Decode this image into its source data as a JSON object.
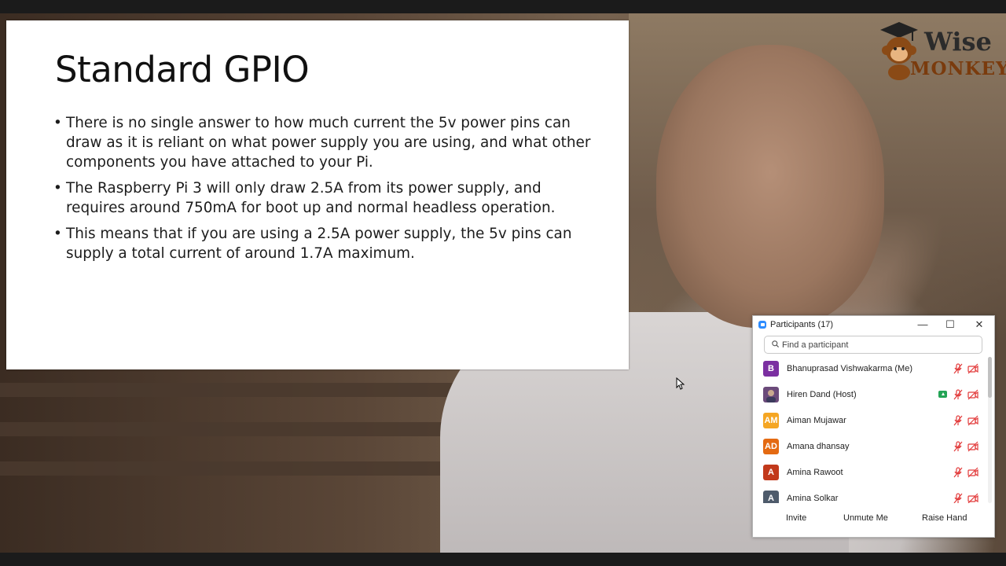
{
  "slide": {
    "title": "Standard GPIO",
    "bullets": [
      "There is no single answer to how much current the 5v power pins can draw as it is reliant on what power supply you are using, and what other components you have attached to your Pi.",
      "The Raspberry Pi 3 will only draw 2.5A from its power supply, and requires around 750mA for boot up and normal headless operation.",
      "This means that if you are using a 2.5A power supply, the 5v pins can supply a total current of around 1.7A maximum."
    ]
  },
  "logo": {
    "line1": "Wise",
    "line2": "MONKEYS",
    "icon": "monkey-graduate-icon"
  },
  "participants_panel": {
    "title": "Participants (17)",
    "search_placeholder": "Find a participant",
    "window_controls": {
      "minimize": "—",
      "maximize": "☐",
      "close": "✕"
    },
    "participants": [
      {
        "name": "Bhanuprasad Vishwakarma (Me)",
        "initials": "B",
        "color": "#7b2fa1",
        "sharing": false
      },
      {
        "name": "Hiren Dand (Host)",
        "initials": "",
        "color": "#6b4a7a",
        "sharing": true
      },
      {
        "name": "Aiman Mujawar",
        "initials": "AM",
        "color": "#f5a623",
        "sharing": false
      },
      {
        "name": "Amana dhansay",
        "initials": "AD",
        "color": "#e46a12",
        "sharing": false
      },
      {
        "name": "Amina Rawoot",
        "initials": "A",
        "color": "#c2391b",
        "sharing": false
      },
      {
        "name": "Amina Solkar",
        "initials": "A",
        "color": "#4e5b6b",
        "sharing": false
      }
    ],
    "footer": {
      "invite": "Invite",
      "unmute": "Unmute Me",
      "raise_hand": "Raise Hand"
    },
    "status_color_muted": "#e23a3a"
  }
}
